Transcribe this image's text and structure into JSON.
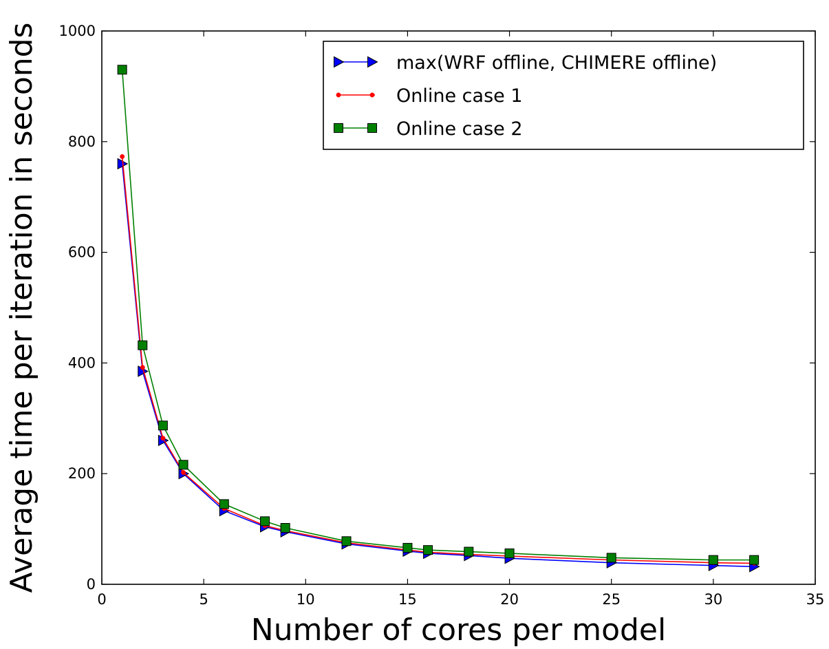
{
  "chart_data": {
    "type": "line",
    "title": "",
    "xlabel": "Number of cores per model",
    "ylabel": "Average time per iteration in seconds",
    "xlim": [
      0,
      35
    ],
    "ylim": [
      0,
      1000
    ],
    "xticks": [
      0,
      5,
      10,
      15,
      20,
      25,
      30,
      35
    ],
    "yticks": [
      0,
      200,
      400,
      600,
      800,
      1000
    ],
    "grid": false,
    "legend_position": "top-right",
    "x": [
      1,
      2,
      3,
      4,
      6,
      8,
      9,
      12,
      15,
      16,
      18,
      20,
      25,
      30,
      32
    ],
    "series": [
      {
        "name": "max(WRF offline, CHIMERE offline)",
        "color": "#0000ff",
        "marker": "triangle-right",
        "values": [
          760,
          385,
          260,
          200,
          133,
          104,
          95,
          73,
          60,
          56,
          52,
          47,
          39,
          34,
          32
        ]
      },
      {
        "name": "Online case 1",
        "color": "#ff0000",
        "marker": "dot",
        "values": [
          773,
          392,
          264,
          202,
          137,
          106,
          97,
          75,
          62,
          58,
          54,
          51,
          44,
          39,
          38
        ]
      },
      {
        "name": "Online case 2",
        "color": "#008000",
        "marker": "square",
        "values": [
          930,
          432,
          287,
          216,
          145,
          114,
          102,
          78,
          66,
          62,
          59,
          56,
          48,
          44,
          44
        ]
      }
    ]
  }
}
